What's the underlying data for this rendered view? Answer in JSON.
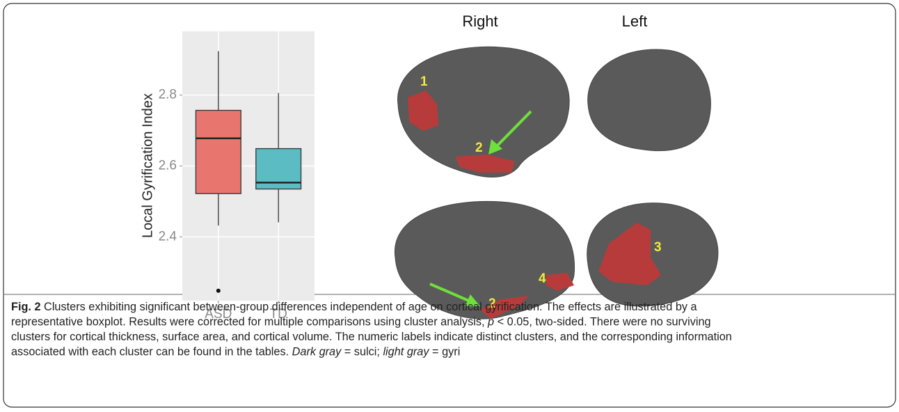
{
  "chart_data": {
    "type": "box",
    "ylabel": "Local Gyrification Index",
    "categories": [
      "ASD",
      "TD"
    ],
    "colors": [
      "#e8766e",
      "#5cbcc3"
    ],
    "boxes": [
      {
        "whisker_low": 2.432,
        "q1": 2.522,
        "median": 2.678,
        "q3": 2.757,
        "whisker_high": 2.924,
        "outliers": [
          2.248
        ]
      },
      {
        "whisker_low": 2.441,
        "q1": 2.535,
        "median": 2.553,
        "q3": 2.649,
        "whisker_high": 2.806,
        "outliers": []
      }
    ],
    "ylim": [
      2.22,
      2.98
    ],
    "yticks": [
      2.4,
      2.6,
      2.8
    ],
    "grid": true
  },
  "figure": {
    "headers": [
      "Right",
      "Left"
    ],
    "cluster_labels": [
      "1",
      "2",
      "2",
      "4",
      "3"
    ]
  },
  "caption": {
    "lines": [
      [
        {
          "text": "Fig. 2",
          "bold": true
        },
        {
          "text": " Clusters exhibiting significant between-group differences independent of age on cortical gyrification. The effects are illustrated by a"
        }
      ],
      [
        {
          "text": "representative boxplot. Results were corrected for multiple comparisons using cluster analysis, "
        },
        {
          "text": "p",
          "italic": true
        },
        {
          "text": " < 0.05, two-sided. There were no surviving"
        }
      ],
      [
        {
          "text": "clusters for cortical thickness, surface area, and cortical volume. The numeric labels indicate distinct clusters, and the corresponding information"
        }
      ],
      [
        {
          "text": "associated with each cluster can be found in the tables. "
        },
        {
          "text": "Dark gray",
          "italic": true
        },
        {
          "text": " = sulci; "
        },
        {
          "text": "light gray",
          "italic": true
        },
        {
          "text": " = gyri"
        }
      ]
    ]
  }
}
